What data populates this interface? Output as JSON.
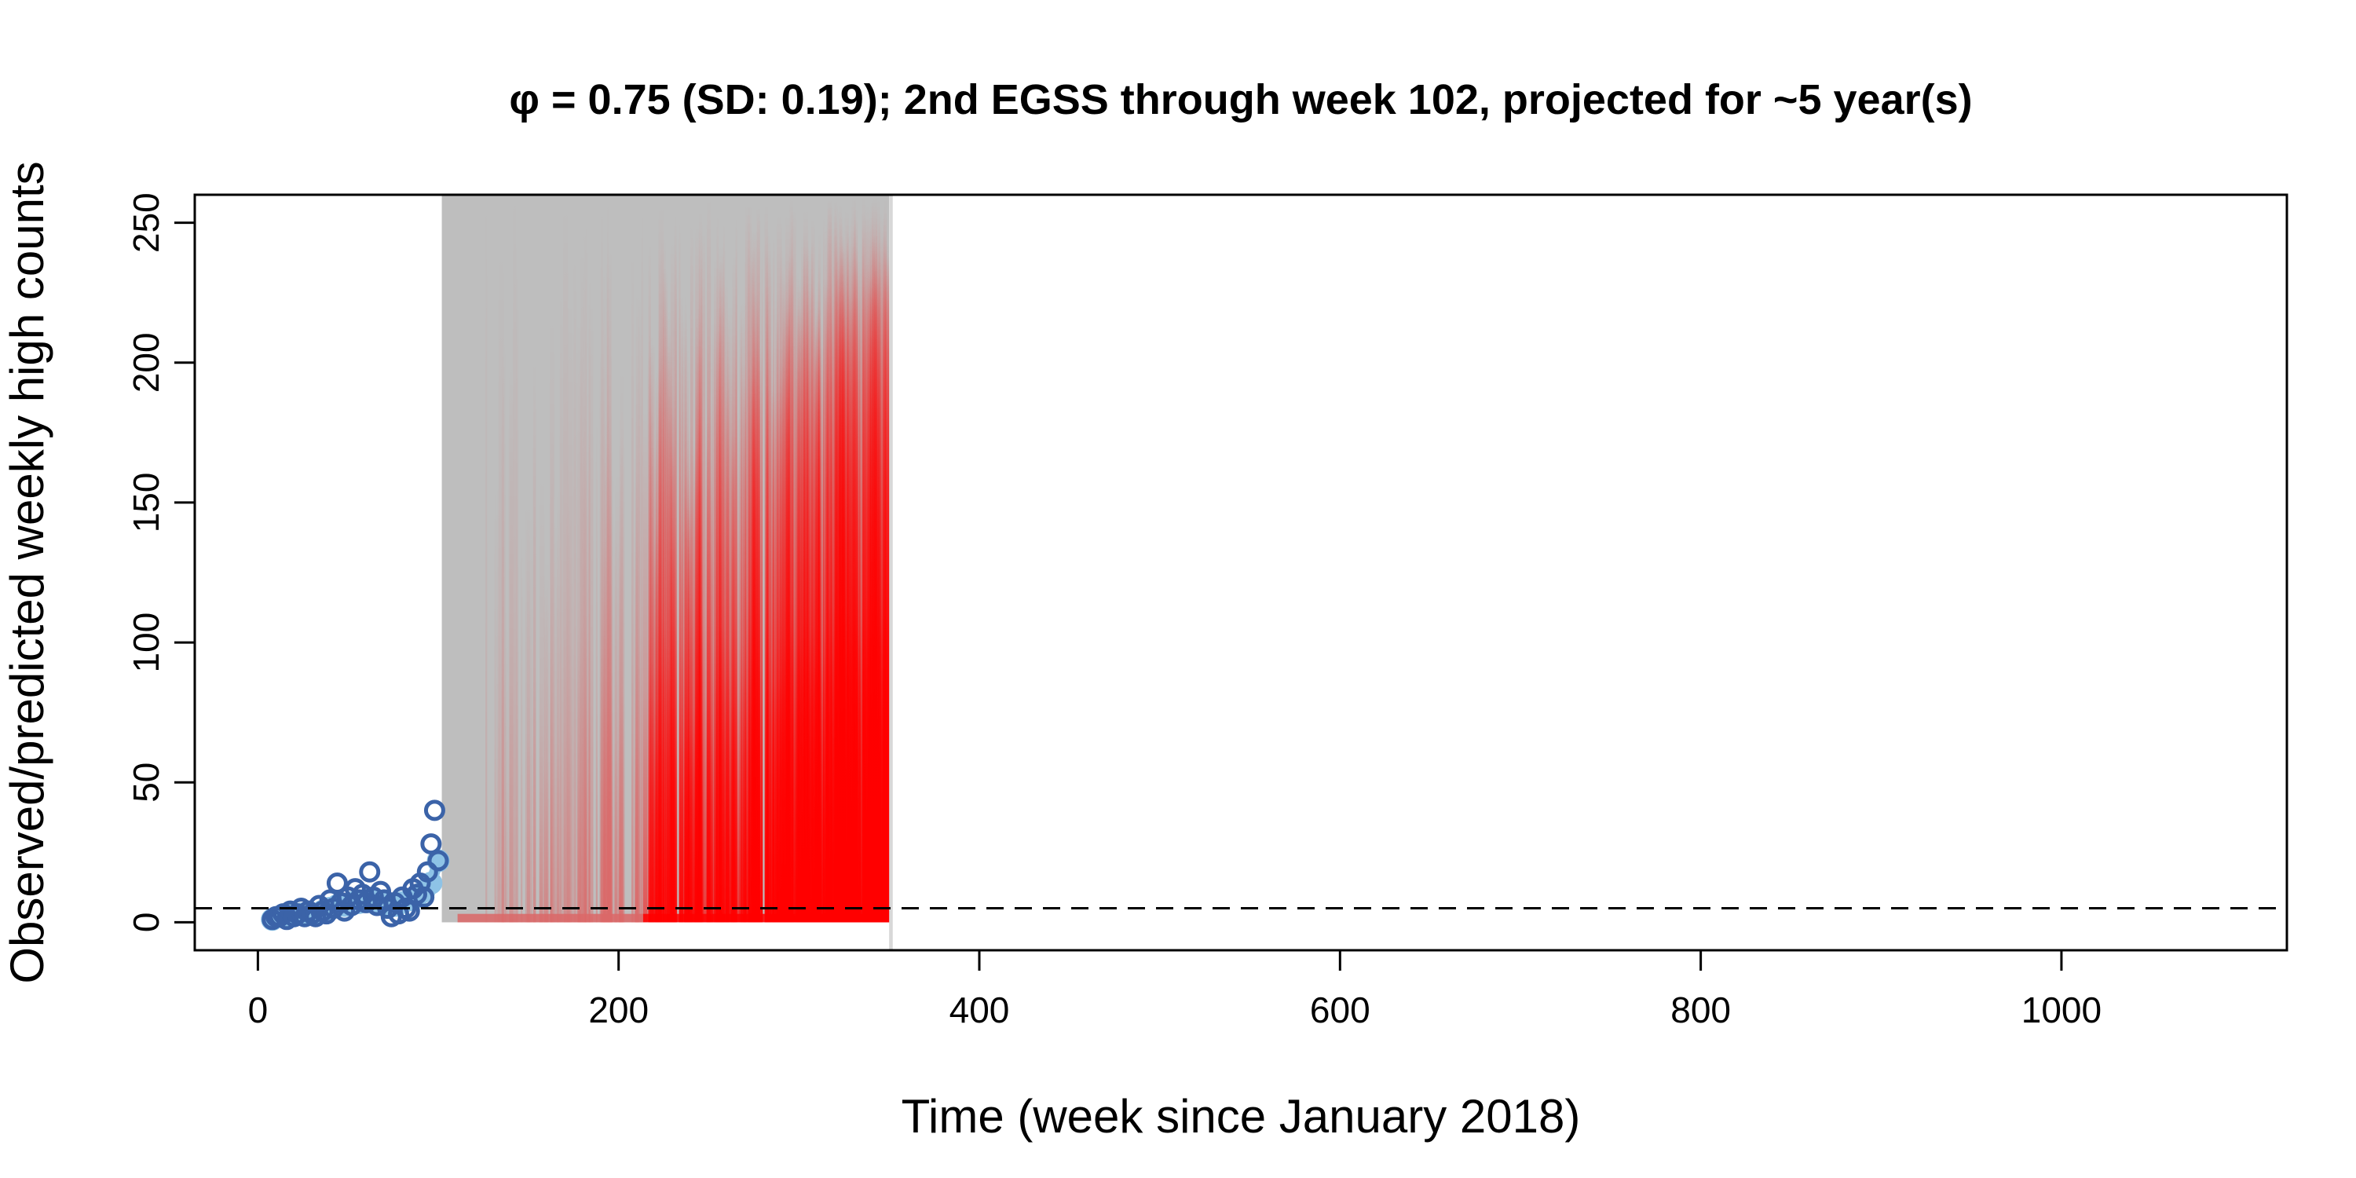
{
  "chart_data": {
    "type": "line",
    "title": "φ = 0.75 (SD: 0.19); 2nd EGSS through week 102, projected for ~5 year(s)",
    "xlabel": "Time (week since January 2018)",
    "ylabel": "Observed/predicted weekly high counts",
    "xlim": [
      -35,
      1125
    ],
    "ylim": [
      -10,
      260
    ],
    "x_ticks": [
      0,
      200,
      400,
      600,
      800,
      1000
    ],
    "y_ticks": [
      0,
      50,
      100,
      150,
      200,
      250
    ],
    "x_tick_labels": [
      "0",
      "200",
      "400",
      "600",
      "800",
      "1000"
    ],
    "y_tick_labels": [
      "0",
      "50",
      "100",
      "150",
      "200",
      "250"
    ],
    "threshold": {
      "y": 5,
      "style": "dashed"
    },
    "observed": {
      "x": [
        8,
        10,
        12,
        14,
        16,
        18,
        20,
        22,
        24,
        26,
        28,
        30,
        32,
        34,
        36,
        38,
        40,
        42,
        44,
        46,
        48,
        50,
        52,
        54,
        56,
        58,
        60,
        62,
        64,
        66,
        68,
        70,
        72,
        74,
        76,
        78,
        80,
        82,
        84,
        86,
        88,
        90,
        92,
        94,
        96,
        98,
        100
      ],
      "y": [
        1,
        2,
        2,
        3,
        1,
        4,
        2,
        3,
        5,
        2,
        4,
        3,
        2,
        6,
        4,
        3,
        8,
        5,
        14,
        7,
        4,
        9,
        6,
        12,
        8,
        10,
        7,
        18,
        9,
        6,
        11,
        8,
        5,
        2,
        7,
        3,
        9,
        5,
        4,
        12,
        10,
        14,
        9,
        18,
        28,
        40,
        22
      ],
      "color": "#3b63a8"
    },
    "fitted": {
      "x": [
        8,
        12,
        16,
        20,
        24,
        28,
        32,
        36,
        40,
        44,
        48,
        52,
        56,
        60,
        64,
        68,
        72,
        76,
        80,
        84,
        88,
        92,
        96,
        100
      ],
      "y": [
        1,
        2,
        2,
        3,
        3,
        3,
        3,
        4,
        5,
        6,
        6,
        7,
        7,
        8,
        8,
        7,
        6,
        6,
        7,
        8,
        9,
        11,
        14,
        22
      ],
      "color": "#8ec3e6"
    },
    "projections": {
      "x_start": 102,
      "x_end": 350,
      "x_max_extent": 352,
      "y_low": 0,
      "y_high": 260,
      "colors": [
        "#bebebe",
        "#ff0000"
      ]
    }
  }
}
